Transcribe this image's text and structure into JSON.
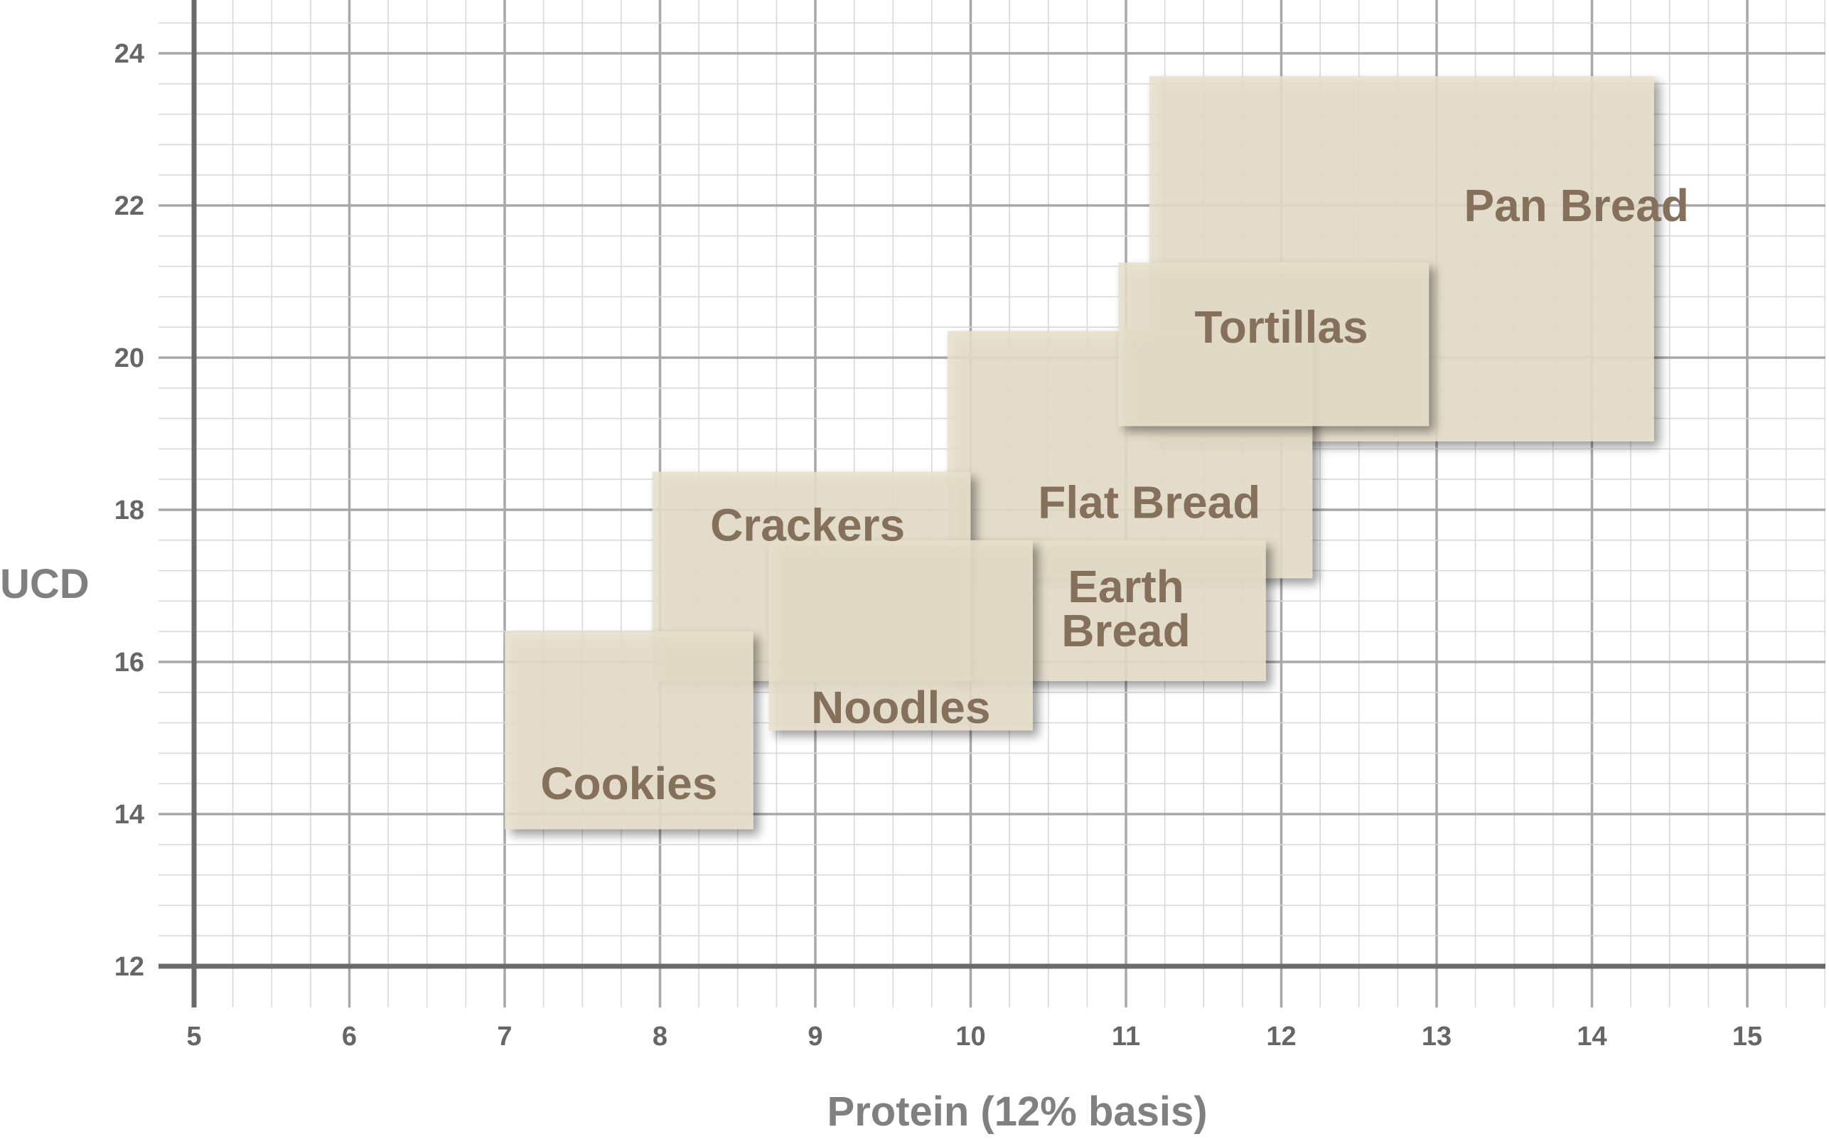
{
  "chart_data": {
    "type": "range-rectangles",
    "title": "",
    "xlabel": "Protein (12% basis)",
    "ylabel": "UCD",
    "xlim": [
      5,
      15.5
    ],
    "ylim": [
      12,
      24.5
    ],
    "xticks": [
      5,
      6,
      7,
      8,
      9,
      10,
      11,
      12,
      13,
      14,
      15
    ],
    "yticks": [
      12,
      14,
      16,
      18,
      20,
      22,
      24
    ],
    "grid": true,
    "regions": [
      {
        "name": "Pan Bread",
        "label_lines": [
          "Pan Bread"
        ],
        "x": [
          11.15,
          14.4
        ],
        "y": [
          18.9,
          23.7
        ],
        "label_at": [
          13.9,
          22.0
        ]
      },
      {
        "name": "Flat Bread",
        "label_lines": [
          "Flat Bread"
        ],
        "x": [
          9.85,
          12.2
        ],
        "y": [
          17.1,
          20.35
        ],
        "label_at": [
          11.15,
          18.1
        ]
      },
      {
        "name": "Earth Bread",
        "label_lines": [
          "Earth",
          "Bread"
        ],
        "x": [
          9.85,
          11.9
        ],
        "y": [
          15.75,
          17.6
        ],
        "label_at": [
          11.0,
          16.7
        ]
      },
      {
        "name": "Tortillas",
        "label_lines": [
          "Tortillas"
        ],
        "x": [
          10.95,
          12.95
        ],
        "y": [
          19.1,
          21.25
        ],
        "label_at": [
          12.0,
          20.4
        ]
      },
      {
        "name": "Crackers",
        "label_lines": [
          "Crackers"
        ],
        "x": [
          7.95,
          10.0
        ],
        "y": [
          15.75,
          18.5
        ],
        "label_at": [
          8.95,
          17.8
        ]
      },
      {
        "name": "Noodles",
        "label_lines": [
          "Noodles"
        ],
        "x": [
          8.7,
          10.4
        ],
        "y": [
          15.1,
          17.6
        ],
        "label_at": [
          9.55,
          15.4
        ]
      },
      {
        "name": "Cookies",
        "label_lines": [
          "Cookies"
        ],
        "x": [
          7.0,
          8.6
        ],
        "y": [
          13.8,
          16.4
        ],
        "label_at": [
          7.8,
          14.4
        ]
      }
    ]
  }
}
